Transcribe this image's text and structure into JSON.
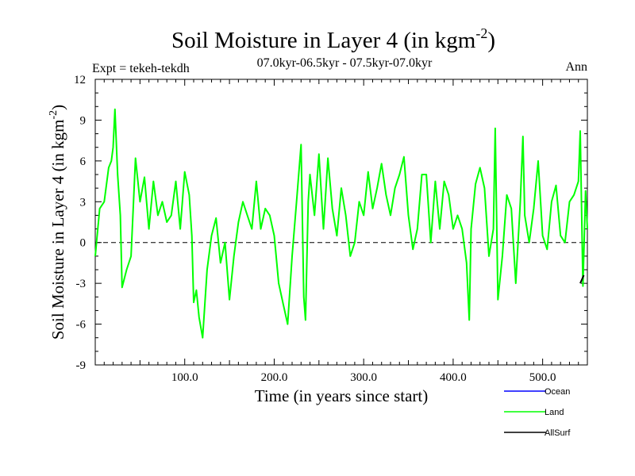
{
  "chart_data": {
    "type": "line",
    "title": "Soil Moisture in Layer 4 (in kgm",
    "title_sup": "-2",
    "title_close": ")",
    "subtitle_left": "Expt = tekeh-tekdh",
    "subtitle_center": "07.0kyr-06.5kyr - 07.5kyr-07.0kyr",
    "subtitle_right": "Ann",
    "xlabel": "Time (in years since start)",
    "ylabel": "Soil Moisture in Layer 4 (in kgm",
    "ylabel_sup": "-2",
    "ylabel_close": ")",
    "xlim": [
      0,
      550
    ],
    "ylim": [
      -9,
      12
    ],
    "xticks": [
      100,
      200,
      300,
      400,
      500
    ],
    "xtick_labels": [
      "100.0",
      "200.0",
      "300.0",
      "400.0",
      "500.0"
    ],
    "yticks": [
      -9,
      -6,
      -3,
      0,
      3,
      6,
      9,
      12
    ],
    "ytick_labels": [
      "-9",
      "-6",
      "-3",
      "0",
      "3",
      "6",
      "9",
      "12"
    ],
    "reference_line": 0,
    "legend": [
      {
        "name": "Ocean",
        "color": "#0000ff"
      },
      {
        "name": "Land",
        "color": "#00ff00"
      },
      {
        "name": "AllSurf",
        "color": "#000000"
      }
    ],
    "series": [
      {
        "name": "Land",
        "color": "#00ff00",
        "x": [
          0,
          5,
          10,
          15,
          18,
          20,
          22,
          25,
          28,
          30,
          35,
          40,
          45,
          50,
          55,
          60,
          65,
          70,
          75,
          80,
          85,
          90,
          95,
          100,
          105,
          108,
          110,
          113,
          116,
          120,
          125,
          130,
          135,
          140,
          145,
          150,
          155,
          160,
          165,
          170,
          175,
          180,
          185,
          190,
          195,
          200,
          205,
          210,
          215,
          220,
          225,
          230,
          233,
          235,
          238,
          240,
          245,
          250,
          255,
          260,
          265,
          270,
          275,
          280,
          285,
          290,
          295,
          300,
          305,
          310,
          315,
          320,
          325,
          330,
          335,
          340,
          345,
          350,
          355,
          360,
          365,
          370,
          375,
          380,
          385,
          390,
          395,
          400,
          405,
          410,
          415,
          418,
          420,
          425,
          430,
          435,
          440,
          445,
          447,
          450,
          455,
          460,
          465,
          470,
          475,
          478,
          480,
          485,
          490,
          495,
          500,
          505,
          510,
          515,
          520,
          525,
          530,
          535,
          540,
          542,
          545,
          548,
          550
        ],
        "y": [
          -1.0,
          2.5,
          3.0,
          5.5,
          6.0,
          7.0,
          9.8,
          5.0,
          2.0,
          -3.3,
          -2.0,
          -1.0,
          6.2,
          3.0,
          4.8,
          1.0,
          4.5,
          2.0,
          3.0,
          1.5,
          2.0,
          4.5,
          1.0,
          5.2,
          3.5,
          0.5,
          -4.4,
          -3.5,
          -5.5,
          -7.0,
          -2.0,
          0.5,
          1.8,
          -1.5,
          0.0,
          -4.2,
          -1.0,
          1.5,
          3.0,
          2.0,
          1.0,
          4.5,
          1.0,
          2.5,
          2.0,
          0.5,
          -3.0,
          -4.5,
          -6.0,
          -1.0,
          3.0,
          7.2,
          -4.0,
          -5.7,
          3.0,
          5.0,
          2.0,
          6.5,
          1.0,
          6.2,
          2.5,
          0.5,
          4.0,
          2.0,
          -1.0,
          0.0,
          3.0,
          2.0,
          5.2,
          2.5,
          4.0,
          5.8,
          3.5,
          2.0,
          4.0,
          5.0,
          6.3,
          2.0,
          -0.5,
          1.0,
          5.0,
          5.0,
          0.0,
          4.5,
          1.0,
          4.5,
          3.5,
          1.0,
          2.0,
          1.0,
          -1.5,
          -5.7,
          1.0,
          4.3,
          5.5,
          4.0,
          -1.0,
          1.0,
          8.4,
          -4.2,
          -1.0,
          3.5,
          2.5,
          -3.0,
          3.0,
          7.8,
          2.0,
          0.0,
          2.5,
          6.0,
          0.5,
          -0.5,
          3.0,
          4.2,
          0.5,
          0.0,
          3.0,
          3.5,
          4.5,
          8.2,
          -3.2,
          3.8,
          1.0
        ]
      },
      {
        "name": "AllSurf",
        "color": "#000000",
        "x": [
          542,
          546
        ],
        "y": [
          -3.0,
          -2.4
        ]
      }
    ]
  }
}
